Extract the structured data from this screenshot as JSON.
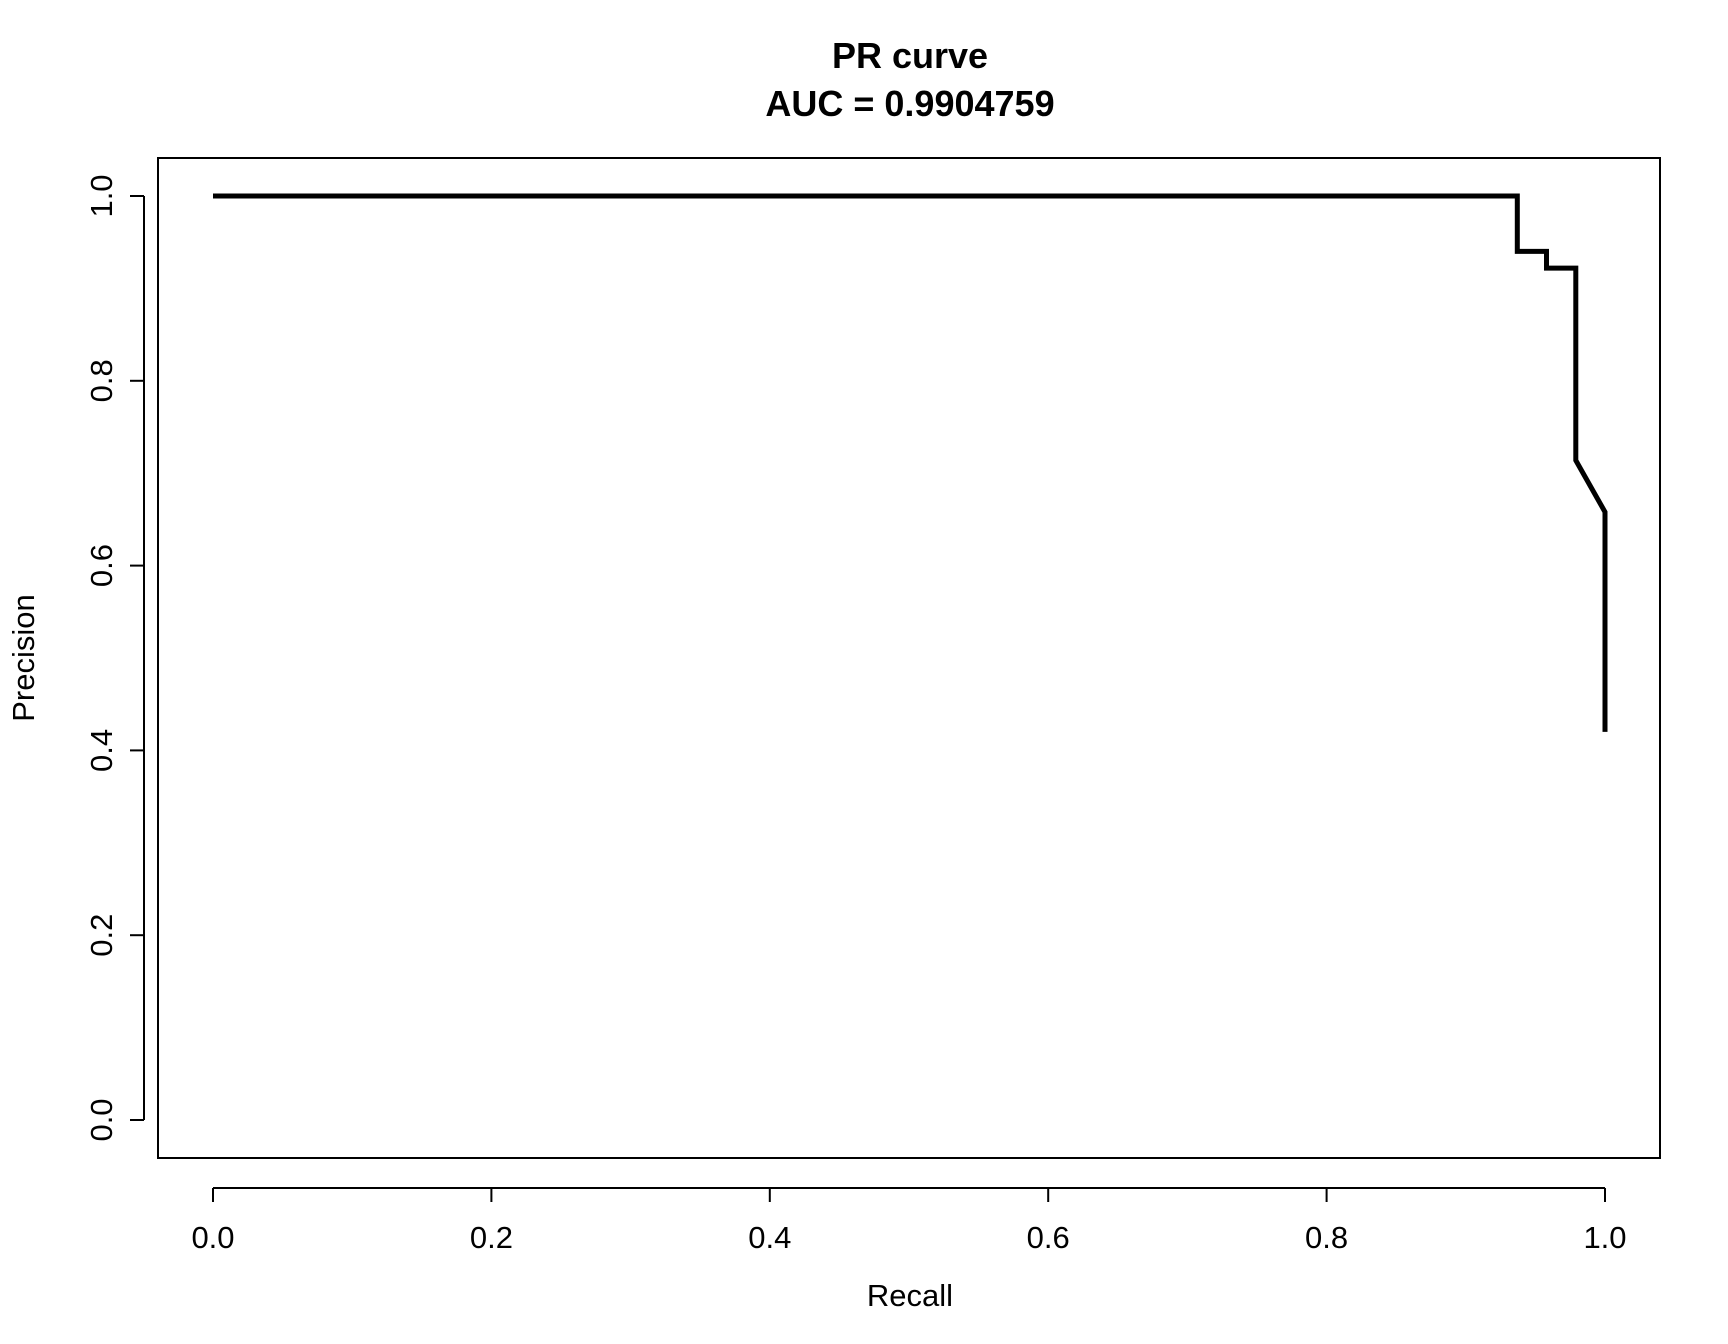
{
  "chart_data": {
    "type": "line",
    "title": "PR curve",
    "subtitle": "AUC = 0.9904759",
    "xlabel": "Recall",
    "ylabel": "Precision",
    "xlim": [
      0.0,
      1.0
    ],
    "ylim": [
      0.0,
      1.0
    ],
    "xticks": [
      "0.0",
      "0.2",
      "0.4",
      "0.6",
      "0.8",
      "1.0"
    ],
    "yticks": [
      "0.0",
      "0.2",
      "0.4",
      "0.6",
      "0.8",
      "1.0"
    ],
    "grid": false,
    "legend": "none",
    "line_color": "#000000",
    "series": [
      {
        "x": [
          0.0,
          0.937,
          0.937,
          0.958,
          0.958,
          0.979,
          0.979,
          1.0,
          1.0
        ],
        "y": [
          1.0,
          1.0,
          0.94,
          0.94,
          0.922,
          0.922,
          0.714,
          0.658,
          0.42
        ]
      }
    ]
  }
}
